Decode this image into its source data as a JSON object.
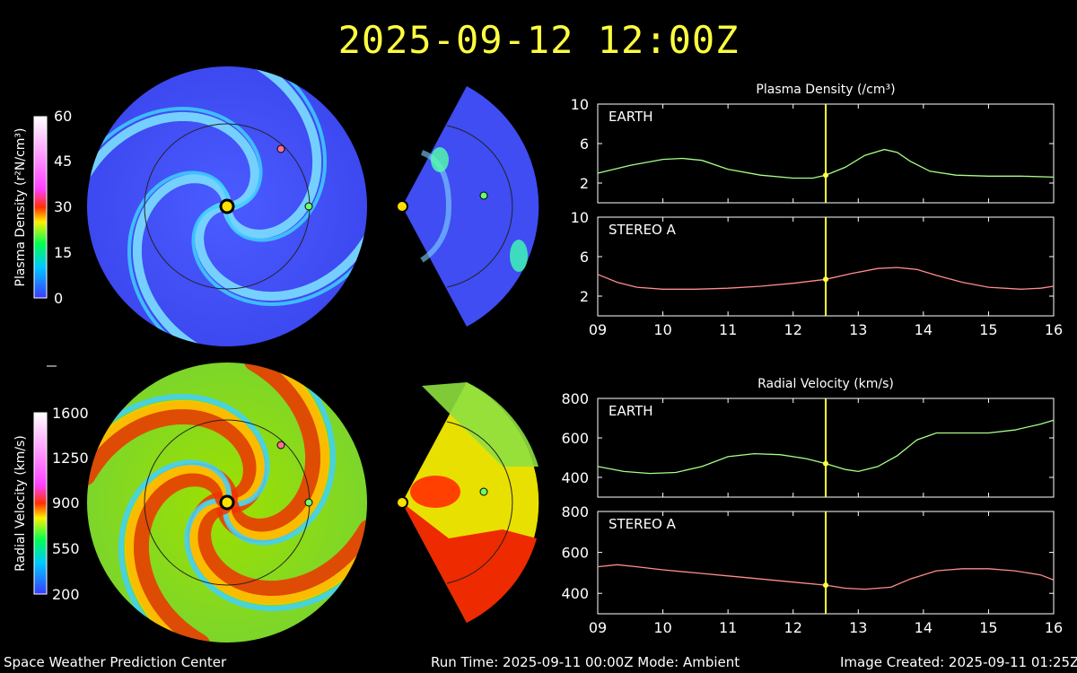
{
  "header": {
    "timestamp": "2025-09-12 12:00Z"
  },
  "colors": {
    "accent_yellow": "#ffff40",
    "earth_series": "#a6ff86",
    "stereo_series": "#ff8c8c",
    "axis_frame": "#ffffff",
    "background": "#000000"
  },
  "colorbars": [
    {
      "label": "Plasma Density (r²N/cm³)",
      "ticks": [
        "60",
        "45",
        "30",
        "15",
        "0"
      ],
      "min": 0,
      "max": 60
    },
    {
      "label": "Radial Velocity (km/s)",
      "ticks": [
        "1600",
        "1250",
        "900",
        "550",
        "200"
      ],
      "min": 200,
      "max": 1600
    }
  ],
  "chart_data": [
    {
      "type": "line",
      "title": "Plasma Density (/cm³)",
      "panels": [
        {
          "name": "EARTH",
          "ylim": [
            0,
            10
          ],
          "yticks": [
            "10",
            "6",
            "2"
          ],
          "x": [
            9.0,
            9.5,
            10.0,
            10.3,
            10.6,
            11.0,
            11.5,
            12.0,
            12.3,
            12.5,
            12.8,
            13.1,
            13.4,
            13.6,
            13.8,
            14.1,
            14.5,
            15.0,
            15.5,
            16.0
          ],
          "values": [
            3.0,
            3.8,
            4.4,
            4.5,
            4.3,
            3.4,
            2.8,
            2.5,
            2.5,
            2.8,
            3.6,
            4.8,
            5.4,
            5.1,
            4.2,
            3.2,
            2.8,
            2.7,
            2.7,
            2.6
          ]
        },
        {
          "name": "STEREO A",
          "ylim": [
            0,
            10
          ],
          "yticks": [
            "10",
            "6",
            "2"
          ],
          "x": [
            9.0,
            9.3,
            9.6,
            10.0,
            10.5,
            11.0,
            11.5,
            12.0,
            12.5,
            12.9,
            13.3,
            13.6,
            13.9,
            14.2,
            14.6,
            15.0,
            15.5,
            15.8,
            16.0
          ],
          "values": [
            4.2,
            3.4,
            2.9,
            2.7,
            2.7,
            2.8,
            3.0,
            3.3,
            3.7,
            4.3,
            4.8,
            4.9,
            4.7,
            4.1,
            3.4,
            2.9,
            2.7,
            2.8,
            3.0
          ]
        }
      ],
      "xlim": [
        9,
        16
      ],
      "xticks": [
        "09",
        "10",
        "11",
        "12",
        "13",
        "14",
        "15",
        "16"
      ],
      "marker_x": 12.5
    },
    {
      "type": "line",
      "title": "Radial Velocity (km/s)",
      "panels": [
        {
          "name": "EARTH",
          "ylim": [
            300,
            800
          ],
          "yticks": [
            "800",
            "600",
            "400"
          ],
          "x": [
            9.0,
            9.4,
            9.8,
            10.2,
            10.6,
            11.0,
            11.4,
            11.8,
            12.2,
            12.5,
            12.8,
            13.0,
            13.3,
            13.6,
            13.9,
            14.2,
            14.6,
            15.0,
            15.4,
            15.8,
            16.0
          ],
          "values": [
            455,
            430,
            420,
            425,
            455,
            505,
            520,
            515,
            495,
            470,
            440,
            430,
            455,
            510,
            590,
            625,
            625,
            625,
            640,
            670,
            690
          ]
        },
        {
          "name": "STEREO A",
          "ylim": [
            300,
            800
          ],
          "yticks": [
            "800",
            "600",
            "400"
          ],
          "x": [
            9.0,
            9.3,
            9.6,
            10.0,
            10.5,
            11.0,
            11.5,
            12.0,
            12.5,
            12.8,
            13.1,
            13.5,
            13.8,
            14.2,
            14.6,
            15.0,
            15.4,
            15.8,
            16.0
          ],
          "values": [
            530,
            540,
            530,
            515,
            500,
            485,
            470,
            455,
            440,
            425,
            420,
            430,
            470,
            510,
            520,
            520,
            510,
            490,
            465
          ]
        }
      ],
      "xlim": [
        9,
        16
      ],
      "xticks": [
        "09",
        "10",
        "11",
        "12",
        "13",
        "14",
        "15",
        "16"
      ],
      "marker_x": 12.5
    }
  ],
  "footer": {
    "left": "Space Weather Prediction Center",
    "middle": "Run Time: 2025-09-11 00:00Z  Mode: Ambient",
    "right": "Image Created: 2025-09-11 01:25Z"
  }
}
